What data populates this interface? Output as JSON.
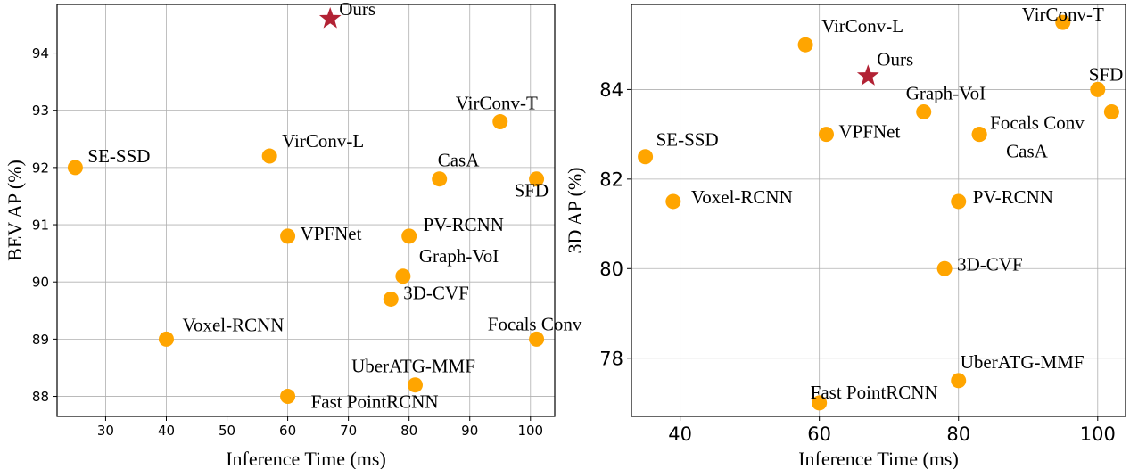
{
  "colors": {
    "point": "#FFA500",
    "ours": "#B22234",
    "grid": "#b0b0b0"
  },
  "chart_data": [
    {
      "type": "scatter",
      "xlabel": "Inference Time (ms)",
      "ylabel": "BEV AP (%)",
      "xlim": [
        22,
        104
      ],
      "ylim": [
        87.65,
        94.85
      ],
      "xticks": [
        30,
        40,
        50,
        60,
        70,
        80,
        90,
        100
      ],
      "yticks": [
        88,
        89,
        90,
        91,
        92,
        93,
        94
      ],
      "grid": true,
      "points": [
        {
          "label": "Ours",
          "x": 67,
          "y": 94.6,
          "marker": "star"
        },
        {
          "label": "SE-SSD",
          "x": 25,
          "y": 92.0
        },
        {
          "label": "VirConv-L",
          "x": 57,
          "y": 92.2
        },
        {
          "label": "VirConv-T",
          "x": 95,
          "y": 92.8
        },
        {
          "label": "CasA",
          "x": 85,
          "y": 91.8
        },
        {
          "label": "SFD",
          "x": 101,
          "y": 91.8
        },
        {
          "label": "VPFNet",
          "x": 60,
          "y": 90.8
        },
        {
          "label": "PV-RCNN",
          "x": 80,
          "y": 90.8
        },
        {
          "label": "Graph-VoI",
          "x": 79,
          "y": 90.1
        },
        {
          "label": "3D-CVF",
          "x": 77,
          "y": 89.7
        },
        {
          "label": "Voxel-RCNN",
          "x": 40,
          "y": 89.0
        },
        {
          "label": "Focals Conv",
          "x": 101,
          "y": 89.0
        },
        {
          "label": "UberATG-MMF",
          "x": 81,
          "y": 88.2
        },
        {
          "label": "Fast PointRCNN",
          "x": 60,
          "y": 88.0
        }
      ]
    },
    {
      "type": "scatter",
      "xlabel": "Inference Time (ms)",
      "ylabel": "3D AP (%)",
      "xlim": [
        33,
        104
      ],
      "ylim": [
        76.7,
        85.9
      ],
      "xticks": [
        40,
        60,
        80,
        100
      ],
      "yticks": [
        78,
        80,
        82,
        84
      ],
      "grid": true,
      "points": [
        {
          "label": "Ours",
          "x": 67,
          "y": 84.3,
          "marker": "star"
        },
        {
          "label": "VirConv-L",
          "x": 58,
          "y": 85.0
        },
        {
          "label": "VirConv-T",
          "x": 95,
          "y": 85.5
        },
        {
          "label": "SFD",
          "x": 100,
          "y": 84.0
        },
        {
          "label": "Graph-VoI",
          "x": 75,
          "y": 83.5
        },
        {
          "label": "",
          "x": 102,
          "y": 83.5
        },
        {
          "label": "Focals Conv",
          "x": 83,
          "y": 83.0
        },
        {
          "label": "CasA",
          "x": 83,
          "y": 83.0
        },
        {
          "label": "VPFNet",
          "x": 61,
          "y": 83.0
        },
        {
          "label": "SE-SSD",
          "x": 35,
          "y": 82.5
        },
        {
          "label": "Voxel-RCNN",
          "x": 39,
          "y": 81.5
        },
        {
          "label": "PV-RCNN",
          "x": 80,
          "y": 81.5
        },
        {
          "label": "3D-CVF",
          "x": 78,
          "y": 80.0
        },
        {
          "label": "UberATG-MMF",
          "x": 80,
          "y": 77.5
        },
        {
          "label": "Fast PointRCNN",
          "x": 60,
          "y": 77.0
        }
      ]
    }
  ]
}
